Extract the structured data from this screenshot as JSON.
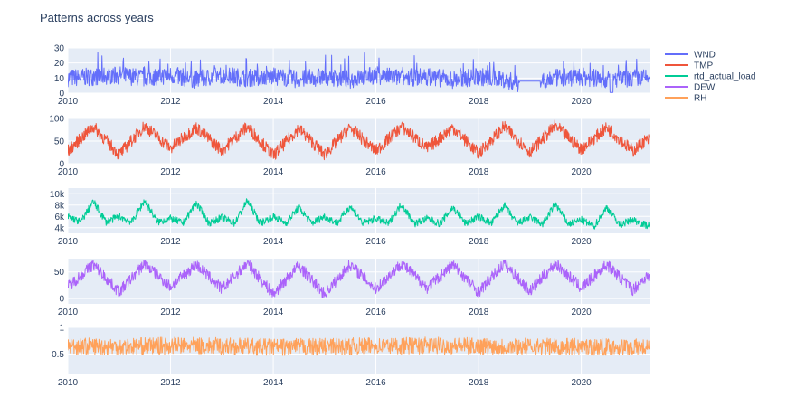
{
  "chart_data": {
    "type": "line",
    "title": "Patterns across years",
    "x_ticks": [
      "2010",
      "2012",
      "2014",
      "2016",
      "2018",
      "2020"
    ],
    "x_range": [
      "2010-01-01",
      "2021-04-30"
    ],
    "legend_position": "top-right",
    "grid": true,
    "series": [
      {
        "name": "WND",
        "color": "#636efa",
        "y_range": [
          0,
          30
        ],
        "y_ticks": [
          "0",
          "10",
          "20",
          "30"
        ],
        "points": [
          [
            "2010-01",
            10
          ],
          [
            "2010-07",
            11
          ],
          [
            "2011-01",
            12
          ],
          [
            "2011-07",
            10
          ],
          [
            "2012-01",
            12
          ],
          [
            "2012-07",
            9
          ],
          [
            "2013-01",
            12
          ],
          [
            "2013-07",
            10
          ],
          [
            "2014-01",
            11
          ],
          [
            "2014-07",
            9
          ],
          [
            "2015-01",
            11
          ],
          [
            "2015-07",
            9
          ],
          [
            "2016-01",
            12
          ],
          [
            "2016-07",
            10
          ],
          [
            "2017-01",
            11
          ],
          [
            "2017-07",
            9
          ],
          [
            "2018-01",
            11
          ],
          [
            "2018-07",
            9
          ],
          [
            "2018-11",
            6
          ],
          [
            "2019-01",
            8
          ],
          [
            "2019-03",
            8
          ],
          [
            "2019-07",
            10
          ],
          [
            "2020-01",
            11
          ],
          [
            "2020-07",
            9
          ],
          [
            "2021-01",
            10
          ],
          [
            "2021-04",
            10
          ]
        ]
      },
      {
        "name": "TMP",
        "color": "#ef553b",
        "y_range": [
          0,
          100
        ],
        "y_ticks": [
          "0",
          "50",
          "100"
        ],
        "points": [
          [
            "2010-01",
            28
          ],
          [
            "2010-07",
            82
          ],
          [
            "2011-01",
            20
          ],
          [
            "2011-07",
            84
          ],
          [
            "2012-01",
            34
          ],
          [
            "2012-07",
            80
          ],
          [
            "2013-01",
            30
          ],
          [
            "2013-07",
            82
          ],
          [
            "2014-01",
            18
          ],
          [
            "2014-07",
            78
          ],
          [
            "2015-01",
            20
          ],
          [
            "2015-07",
            80
          ],
          [
            "2016-01",
            28
          ],
          [
            "2016-07",
            82
          ],
          [
            "2017-01",
            34
          ],
          [
            "2017-07",
            80
          ],
          [
            "2018-01",
            22
          ],
          [
            "2018-07",
            82
          ],
          [
            "2019-01",
            26
          ],
          [
            "2019-07",
            84
          ],
          [
            "2020-01",
            32
          ],
          [
            "2020-07",
            80
          ],
          [
            "2021-01",
            28
          ],
          [
            "2021-04",
            52
          ]
        ]
      },
      {
        "name": "rtd_actual_load",
        "color": "#00cc96",
        "y_range": [
          3000,
          11000
        ],
        "y_ticks": [
          "4k",
          "6k",
          "8k",
          "10k"
        ],
        "points": [
          [
            "2010-01",
            6000
          ],
          [
            "2010-04",
            5000
          ],
          [
            "2010-07",
            8600
          ],
          [
            "2010-10",
            5000
          ],
          [
            "2011-01",
            6000
          ],
          [
            "2011-04",
            5000
          ],
          [
            "2011-07",
            8800
          ],
          [
            "2011-10",
            5000
          ],
          [
            "2012-01",
            5600
          ],
          [
            "2012-04",
            4800
          ],
          [
            "2012-07",
            8400
          ],
          [
            "2012-10",
            4800
          ],
          [
            "2013-01",
            5800
          ],
          [
            "2013-04",
            4800
          ],
          [
            "2013-07",
            8800
          ],
          [
            "2013-10",
            4800
          ],
          [
            "2014-01",
            6000
          ],
          [
            "2014-04",
            4800
          ],
          [
            "2014-07",
            7600
          ],
          [
            "2014-10",
            4800
          ],
          [
            "2015-01",
            6000
          ],
          [
            "2015-04",
            4800
          ],
          [
            "2015-07",
            7800
          ],
          [
            "2015-10",
            4800
          ],
          [
            "2016-01",
            5600
          ],
          [
            "2016-04",
            4700
          ],
          [
            "2016-07",
            8200
          ],
          [
            "2016-10",
            4700
          ],
          [
            "2017-01",
            5600
          ],
          [
            "2017-04",
            4700
          ],
          [
            "2017-07",
            7600
          ],
          [
            "2017-10",
            4700
          ],
          [
            "2018-01",
            6000
          ],
          [
            "2018-04",
            4700
          ],
          [
            "2018-07",
            8000
          ],
          [
            "2018-10",
            4700
          ],
          [
            "2019-01",
            5800
          ],
          [
            "2019-04",
            4600
          ],
          [
            "2019-07",
            8200
          ],
          [
            "2019-10",
            4600
          ],
          [
            "2020-01",
            5400
          ],
          [
            "2020-04",
            4200
          ],
          [
            "2020-07",
            7600
          ],
          [
            "2020-10",
            4500
          ],
          [
            "2021-01",
            5400
          ],
          [
            "2021-04",
            4500
          ]
        ]
      },
      {
        "name": "DEW",
        "color": "#ab63fa",
        "y_range": [
          -10,
          75
        ],
        "y_ticks": [
          "0",
          "50"
        ],
        "points": [
          [
            "2010-01",
            22
          ],
          [
            "2010-07",
            64
          ],
          [
            "2011-01",
            12
          ],
          [
            "2011-07",
            66
          ],
          [
            "2012-01",
            22
          ],
          [
            "2012-07",
            64
          ],
          [
            "2013-01",
            18
          ],
          [
            "2013-07",
            66
          ],
          [
            "2014-01",
            8
          ],
          [
            "2014-07",
            62
          ],
          [
            "2015-01",
            8
          ],
          [
            "2015-07",
            64
          ],
          [
            "2016-01",
            18
          ],
          [
            "2016-07",
            66
          ],
          [
            "2017-01",
            20
          ],
          [
            "2017-07",
            64
          ],
          [
            "2018-01",
            12
          ],
          [
            "2018-07",
            66
          ],
          [
            "2019-01",
            14
          ],
          [
            "2019-07",
            66
          ],
          [
            "2020-01",
            20
          ],
          [
            "2020-07",
            64
          ],
          [
            "2021-01",
            16
          ],
          [
            "2021-04",
            40
          ]
        ]
      },
      {
        "name": "RH",
        "color": "#ffa15a",
        "y_range": [
          0.12,
          1.0
        ],
        "y_ticks": [
          "0.5",
          "1"
        ],
        "points": [
          [
            "2010-01",
            0.65
          ],
          [
            "2011-01",
            0.64
          ],
          [
            "2012-01",
            0.66
          ],
          [
            "2013-01",
            0.65
          ],
          [
            "2014-01",
            0.63
          ],
          [
            "2015-01",
            0.64
          ],
          [
            "2016-01",
            0.65
          ],
          [
            "2017-01",
            0.66
          ],
          [
            "2018-01",
            0.65
          ],
          [
            "2019-01",
            0.64
          ],
          [
            "2020-01",
            0.64
          ],
          [
            "2021-01",
            0.63
          ],
          [
            "2021-04",
            0.62
          ]
        ]
      }
    ]
  }
}
